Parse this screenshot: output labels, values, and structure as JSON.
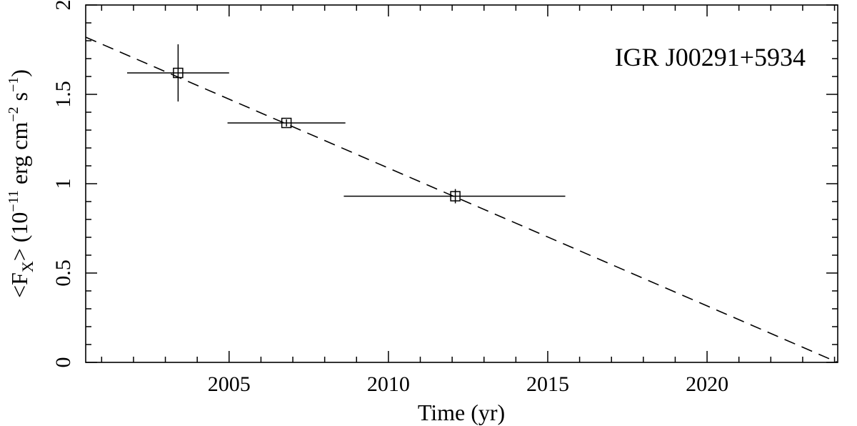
{
  "chart_data": {
    "type": "scatter",
    "annotation": "IGR J00291+5934",
    "xlabel": "Time (yr)",
    "ylabel": {
      "prefix": "<F",
      "sub": "X",
      "mid": "> (10",
      "sup1": "−11",
      "mid2": " erg cm",
      "sup2": "−2",
      "mid3": " s",
      "sup3": "−1",
      "suffix": ")"
    },
    "xlim": [
      2000.5,
      2024.1
    ],
    "ylim": [
      0,
      2
    ],
    "x_ticks": [
      2005,
      2010,
      2015,
      2020
    ],
    "x_tick_labels": [
      "2005",
      "2010",
      "2015",
      "2020"
    ],
    "y_ticks": [
      0,
      0.5,
      1,
      1.5,
      2
    ],
    "y_tick_labels": [
      "0",
      "0.5",
      "1",
      "1.5",
      "2"
    ],
    "x_minor_step": 1,
    "y_minor_step": 0.1,
    "points": [
      {
        "x": 2003.4,
        "y": 1.62,
        "xerr_low": 1.6,
        "xerr_high": 1.6,
        "yerr_low": 0.16,
        "yerr_high": 0.16
      },
      {
        "x": 2006.8,
        "y": 1.34,
        "xerr_low": 1.85,
        "xerr_high": 1.85,
        "yerr_low": 0.02,
        "yerr_high": 0.02
      },
      {
        "x": 2012.1,
        "y": 0.93,
        "xerr_low": 3.5,
        "xerr_high": 3.45,
        "yerr_low": 0.04,
        "yerr_high": 0.04
      }
    ],
    "fit_line": {
      "x": [
        2000.5,
        2024.1
      ],
      "y": [
        1.82,
        0.0
      ],
      "style": "dashed"
    },
    "marker": "open-square",
    "color": "#000000"
  }
}
